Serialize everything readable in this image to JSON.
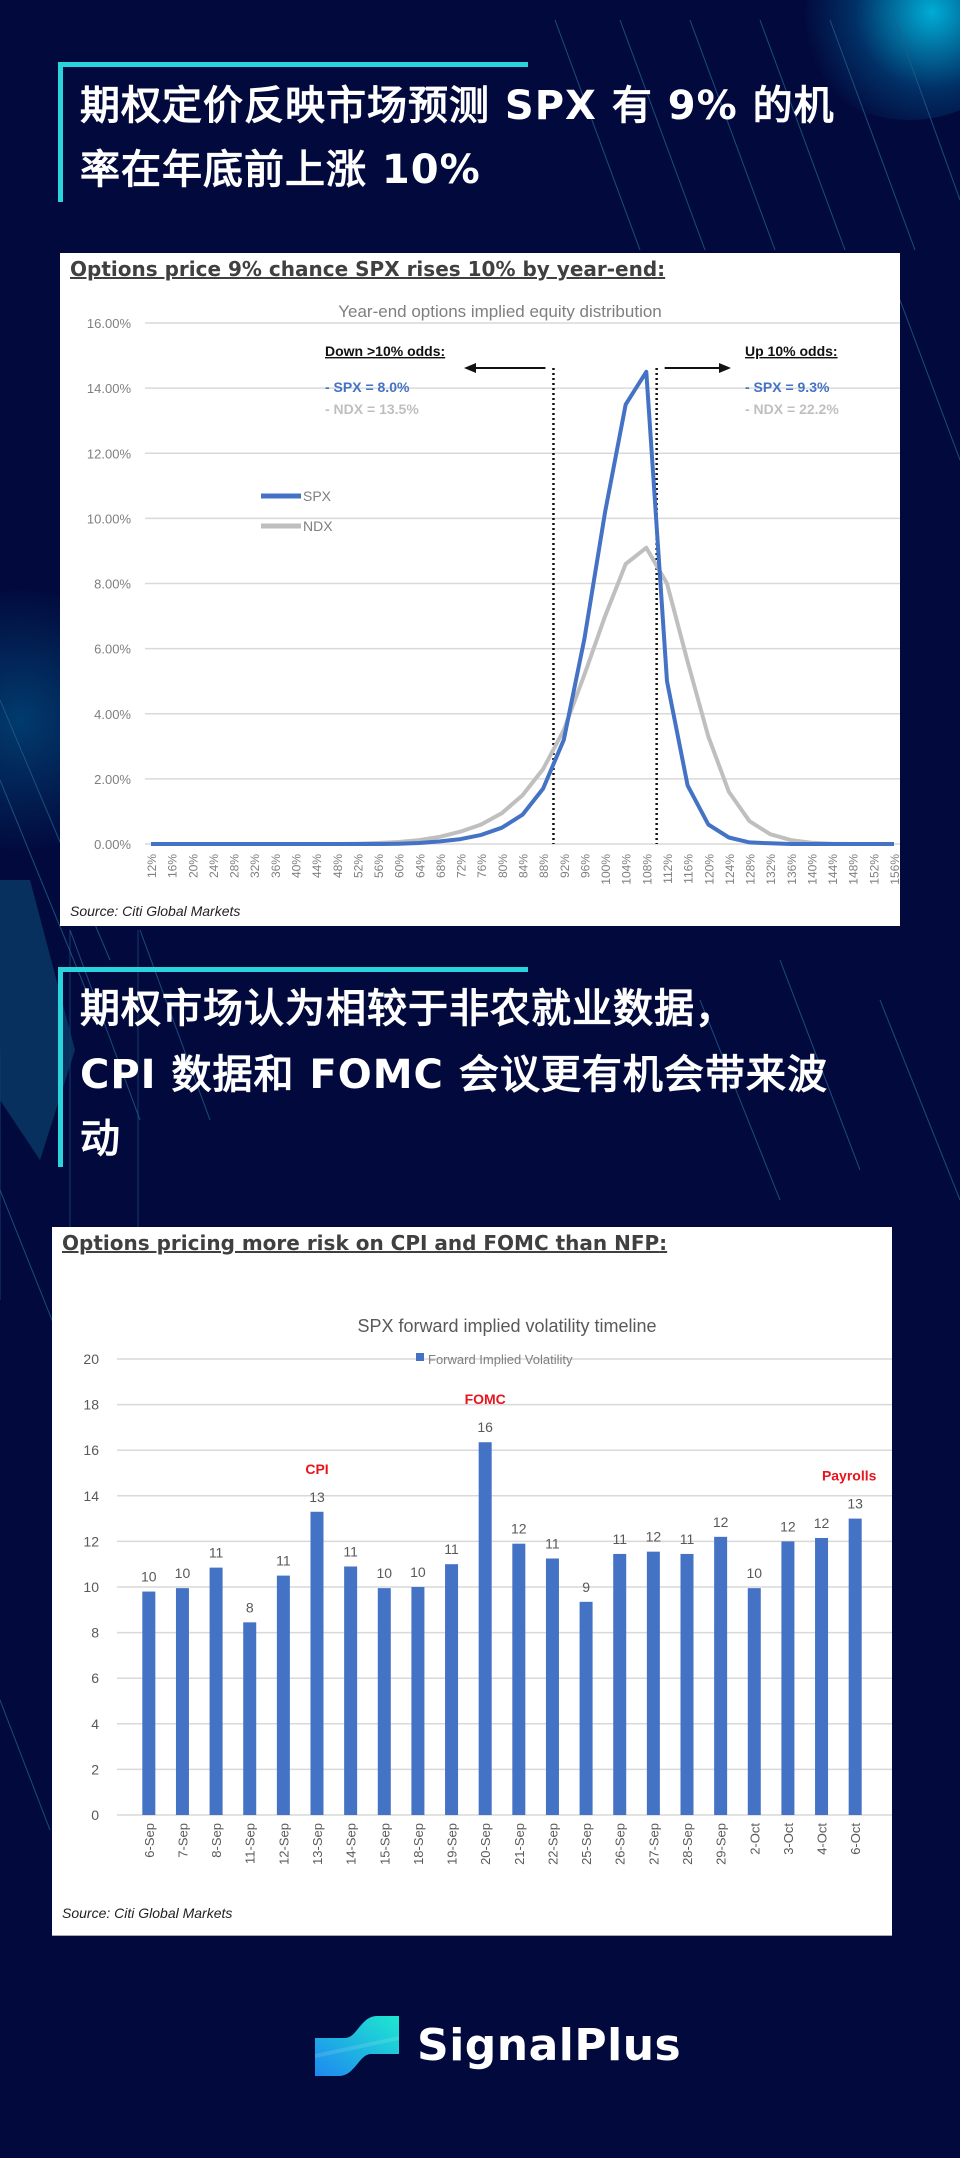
{
  "headings": [
    {
      "lines": [
        "期权定价反映市场预测 SPX 有 9% 的机",
        "率在年底前上涨 10%"
      ]
    },
    {
      "lines": [
        "期权市场认为相较于非农就业数据，",
        "CPI 数据和 FOMC 会议更有机会带来波",
        "动"
      ]
    }
  ],
  "colors": {
    "background": "#020a3d",
    "accent": "#2ad4dc",
    "spx": "#4472c4",
    "ndx": "#bfbfbf",
    "bar": "#4472c4",
    "event_label": "#e8141c"
  },
  "brand": {
    "name": "SignalPlus",
    "icon": "signalplus-logo-icon"
  },
  "chart_data": [
    {
      "type": "line",
      "card_title": "Options price 9% chance SPX rises 10% by year-end",
      "card_title_suffix": ":",
      "title": "Year-end options implied equity distribution",
      "xlabel": "",
      "ylabel": "",
      "ylim": [
        0,
        16
      ],
      "y_ticks": [
        "0.00%",
        "2.00%",
        "4.00%",
        "6.00%",
        "8.00%",
        "10.00%",
        "12.00%",
        "14.00%",
        "16.00%"
      ],
      "x": [
        "12%",
        "16%",
        "20%",
        "24%",
        "28%",
        "32%",
        "36%",
        "40%",
        "44%",
        "48%",
        "52%",
        "56%",
        "60%",
        "64%",
        "68%",
        "72%",
        "76%",
        "80%",
        "84%",
        "88%",
        "92%",
        "96%",
        "100%",
        "104%",
        "108%",
        "112%",
        "116%",
        "120%",
        "124%",
        "128%",
        "132%",
        "136%",
        "140%",
        "144%",
        "148%",
        "152%",
        "156%"
      ],
      "series": [
        {
          "name": "SPX",
          "values": [
            0,
            0,
            0,
            0,
            0,
            0,
            0,
            0,
            0,
            0,
            0,
            0,
            0.01,
            0.03,
            0.08,
            0.15,
            0.28,
            0.5,
            0.9,
            1.7,
            3.2,
            6.3,
            10.2,
            13.5,
            14.5,
            5.0,
            1.8,
            0.6,
            0.2,
            0.05,
            0.02,
            0,
            0,
            0,
            0,
            0,
            0
          ]
        },
        {
          "name": "NDX",
          "values": [
            0,
            0,
            0,
            0,
            0,
            0,
            0,
            0,
            0,
            0,
            0.01,
            0.03,
            0.06,
            0.12,
            0.22,
            0.38,
            0.6,
            0.95,
            1.5,
            2.3,
            3.5,
            5.2,
            7.0,
            8.6,
            9.1,
            8.0,
            5.6,
            3.3,
            1.6,
            0.7,
            0.3,
            0.12,
            0.04,
            0.01,
            0,
            0,
            0
          ]
        }
      ],
      "legend": [
        "SPX",
        "NDX"
      ],
      "legend_position": "left-inside",
      "grid": true,
      "annotations": {
        "down": {
          "heading": "Down >10% odds:",
          "spx": "- SPX = 8.0%",
          "ndx": "- NDX = 13.5%"
        },
        "up": {
          "heading": "Up 10% odds:",
          "spx": "- SPX = 9.3%",
          "ndx": "- NDX = 22.2%"
        },
        "threshold_lines": [
          "90%",
          "110%"
        ]
      },
      "source": "Source: Citi Global Markets"
    },
    {
      "type": "bar",
      "card_title": "Options pricing more risk on CPI and FOMC than NFP",
      "card_title_suffix": ":",
      "title": "SPX forward implied volatility timeline",
      "legend": [
        "Forward Implied Volatility"
      ],
      "legend_position": "top",
      "xlabel": "",
      "ylabel": "",
      "ylim": [
        0,
        20
      ],
      "y_ticks": [
        "0",
        "2",
        "4",
        "6",
        "8",
        "10",
        "12",
        "14",
        "16",
        "18",
        "20"
      ],
      "grid": true,
      "categories": [
        "6-Sep",
        "7-Sep",
        "8-Sep",
        "11-Sep",
        "12-Sep",
        "13-Sep",
        "14-Sep",
        "15-Sep",
        "18-Sep",
        "19-Sep",
        "20-Sep",
        "21-Sep",
        "22-Sep",
        "25-Sep",
        "26-Sep",
        "27-Sep",
        "28-Sep",
        "29-Sep",
        "2-Oct",
        "3-Oct",
        "4-Oct",
        "6-Oct"
      ],
      "values": [
        9.8,
        9.95,
        10.85,
        8.45,
        10.5,
        13.3,
        10.9,
        9.95,
        10.0,
        11.0,
        16.35,
        11.9,
        11.25,
        9.35,
        11.45,
        11.55,
        11.45,
        12.2,
        9.95,
        12.0,
        12.15,
        13.0
      ],
      "data_labels": [
        "10",
        "10",
        "11",
        "8",
        "11",
        "13",
        "11",
        "10",
        "10",
        "11",
        "16",
        "12",
        "11",
        "9",
        "11",
        "12",
        "11",
        "12",
        "10",
        "12",
        "12",
        "13"
      ],
      "event_annotations": [
        {
          "index": 5,
          "label": "CPI"
        },
        {
          "index": 10,
          "label": "FOMC"
        },
        {
          "index": 21,
          "label": "Payrolls"
        }
      ],
      "source": "Source: Citi Global Markets"
    }
  ]
}
